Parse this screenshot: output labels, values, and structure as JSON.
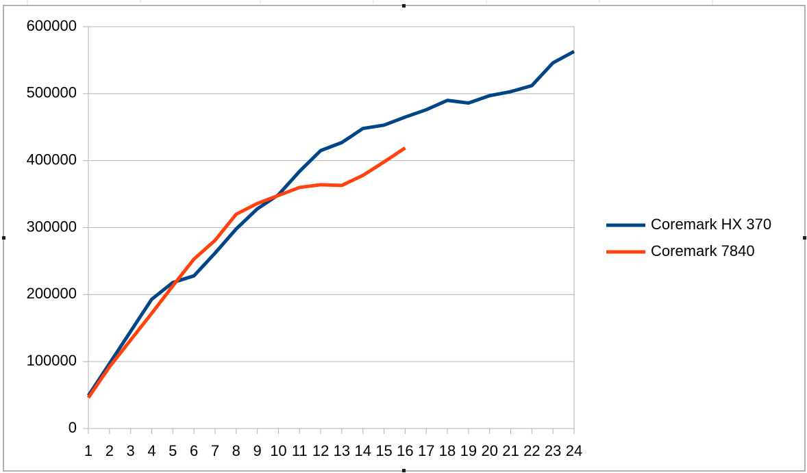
{
  "chart_data": {
    "type": "line",
    "categories": [
      "1",
      "2",
      "3",
      "4",
      "5",
      "6",
      "7",
      "8",
      "9",
      "10",
      "11",
      "12",
      "13",
      "14",
      "15",
      "16",
      "17",
      "18",
      "19",
      "20",
      "21",
      "22",
      "23",
      "24"
    ],
    "series": [
      {
        "name": "Coremark HX 370",
        "color": "#004586",
        "values": [
          49000,
          97000,
          145000,
          193000,
          218000,
          228000,
          262000,
          298000,
          328000,
          349000,
          384000,
          415000,
          427000,
          448000,
          453000,
          465000,
          476000,
          490000,
          486000,
          497000,
          503000,
          512000,
          546000,
          563000
        ]
      },
      {
        "name": "Coremark 7840",
        "color": "#ff420e",
        "values": [
          46000,
          92000,
          132000,
          172000,
          213000,
          253000,
          281000,
          320000,
          336000,
          348000,
          360000,
          364000,
          363000,
          378000,
          398000,
          419000,
          null,
          null,
          null,
          null,
          null,
          null,
          null,
          null
        ]
      }
    ],
    "ylim": [
      0,
      600000
    ],
    "yticks": [
      0,
      100000,
      200000,
      300000,
      400000,
      500000,
      600000
    ],
    "grid": true,
    "legend": "right"
  }
}
